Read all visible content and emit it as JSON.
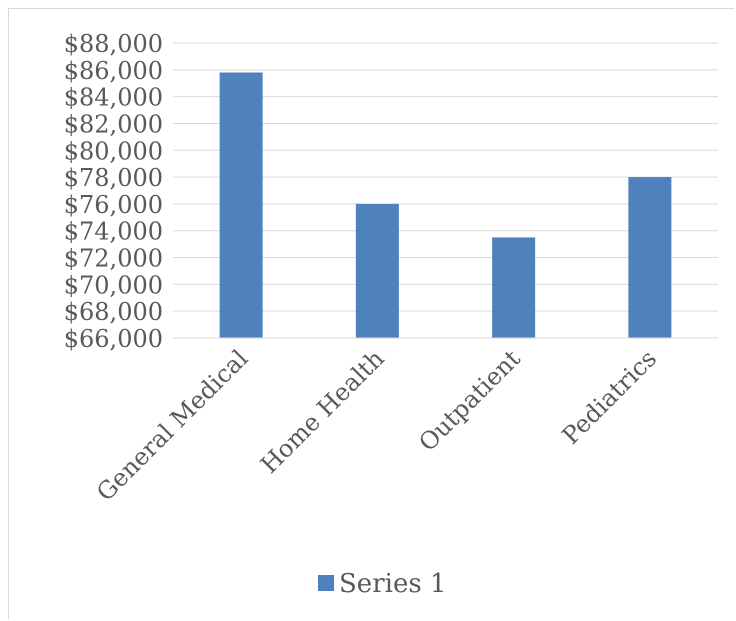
{
  "chart_data": {
    "type": "bar",
    "categories": [
      "General Medical",
      "Home Health",
      "Outpatient",
      "Pediatrics"
    ],
    "series": [
      {
        "name": "Series 1",
        "values": [
          85800,
          76000,
          73500,
          78000
        ],
        "color": "#4f81bd"
      }
    ],
    "ylim": [
      66000,
      88000
    ],
    "y_tick_step": 2000,
    "y_tick_labels": [
      "$66,000",
      "$68,000",
      "$70,000",
      "$72,000",
      "$74,000",
      "$76,000",
      "$78,000",
      "$80,000",
      "$82,000",
      "$84,000",
      "$86,000",
      "$88,000"
    ],
    "grid": true,
    "legend_position": "bottom",
    "title": "",
    "xlabel": "",
    "ylabel": ""
  }
}
